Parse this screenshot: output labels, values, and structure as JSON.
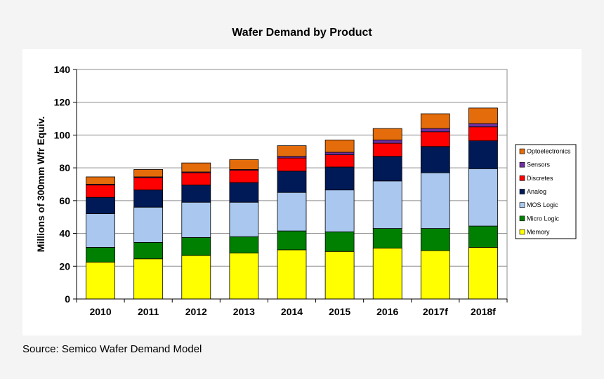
{
  "source_note": "Source:  Semico Wafer Demand Model",
  "chart_data": {
    "type": "bar",
    "stacked": true,
    "title": "Wafer Demand by Product",
    "xlabel": "",
    "ylabel": "Millions of 300mm Wfr Equiv.",
    "ylim": [
      0,
      140
    ],
    "yticks": [
      0,
      20,
      40,
      60,
      80,
      100,
      120,
      140
    ],
    "grid": true,
    "legend_position": "right",
    "categories": [
      "2010",
      "2011",
      "2012",
      "2013",
      "2014",
      "2015",
      "2016",
      "2017f",
      "2018f"
    ],
    "series": [
      {
        "name": "Memory",
        "color": "#ffff00",
        "values": [
          22.5,
          24.5,
          26.5,
          28,
          30,
          29,
          31,
          29.5,
          31.5
        ]
      },
      {
        "name": "Micro Logic",
        "color": "#008000",
        "values": [
          9,
          10,
          11,
          10,
          11.5,
          12,
          12,
          13.5,
          13
        ]
      },
      {
        "name": "MOS Logic",
        "color": "#a9c7ef",
        "values": [
          20.5,
          21.5,
          21.5,
          21,
          23.5,
          25.5,
          29,
          34,
          35
        ]
      },
      {
        "name": "Analog",
        "color": "#001a57",
        "values": [
          10,
          10.5,
          10.5,
          12,
          13,
          14,
          15,
          16,
          17
        ]
      },
      {
        "name": "Discretes",
        "color": "#ff0000",
        "values": [
          7.5,
          7.5,
          7.5,
          7.5,
          8,
          7.5,
          8,
          9,
          8.5
        ]
      },
      {
        "name": "Sensors",
        "color": "#7030a0",
        "values": [
          0.5,
          0.5,
          0.5,
          0.5,
          1,
          1.5,
          2,
          2,
          2
        ]
      },
      {
        "name": "Optoelectronics",
        "color": "#e46c0a",
        "values": [
          4.5,
          4.5,
          5.5,
          6,
          6.5,
          7.5,
          7,
          9,
          9.5
        ]
      }
    ]
  }
}
